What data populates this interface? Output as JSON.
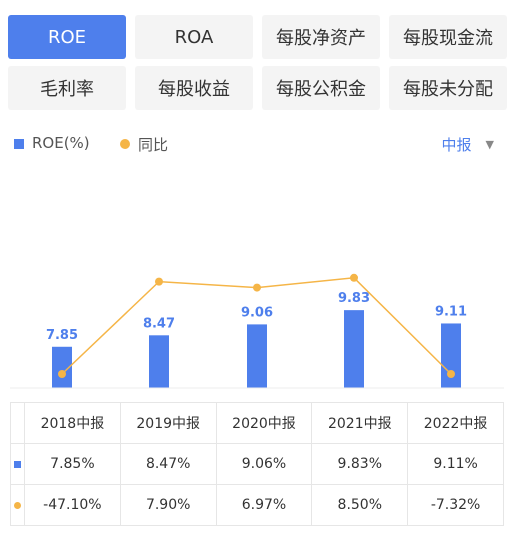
{
  "tabs": [
    {
      "label": "ROE",
      "active": true
    },
    {
      "label": "ROA",
      "active": false
    },
    {
      "label": "每股净资产",
      "active": false
    },
    {
      "label": "每股现金流",
      "active": false
    },
    {
      "label": "毛利率",
      "active": false
    },
    {
      "label": "每股收益",
      "active": false
    },
    {
      "label": "每股公积金",
      "active": false
    },
    {
      "label": "每股未分配",
      "active": false
    }
  ],
  "legend": {
    "roe": "ROE(%)",
    "yoy": "同比"
  },
  "period_select": {
    "value": "中报",
    "icon": "caret-down-icon"
  },
  "colors": {
    "bar": "#4e7fec",
    "line": "#f5b547",
    "positive": "#d9534f",
    "negative": "#3b9b3b"
  },
  "chart_data": {
    "type": "bar",
    "categories": [
      "2018中报",
      "2019中报",
      "2020中报",
      "2021中报",
      "2022中报"
    ],
    "series": [
      {
        "name": "ROE(%)",
        "type": "bar",
        "values": [
          7.85,
          8.47,
          9.06,
          9.83,
          9.11
        ],
        "labels": [
          "7.85",
          "8.47",
          "9.06",
          "9.83",
          "9.11"
        ]
      },
      {
        "name": "同比",
        "type": "line",
        "values": [
          -47.1,
          7.9,
          6.97,
          8.5,
          -7.32
        ]
      }
    ],
    "grid": false
  },
  "table": {
    "headers": [
      "2018中报",
      "2019中报",
      "2020中报",
      "2021中报",
      "2022中报"
    ],
    "roe_row": [
      "7.85%",
      "8.47%",
      "9.06%",
      "9.83%",
      "9.11%"
    ],
    "yoy_row": [
      "-47.10%",
      "7.90%",
      "6.97%",
      "8.50%",
      "-7.32%"
    ]
  }
}
